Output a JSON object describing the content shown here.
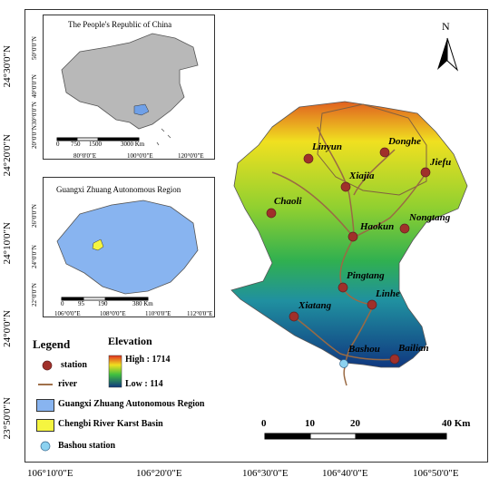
{
  "latitudes": [
    "24°30'0\"N",
    "24°20'0\"N",
    "24°10'0\"N",
    "24°0'0\"N",
    "23°50'0\"N"
  ],
  "longitudes": [
    "106°10'0\"E",
    "106°20'0\"E",
    "106°30'0\"E",
    "106°40'0\"E",
    "106°50'0\"E"
  ],
  "china_inset": {
    "title": "The People's Republic of China",
    "lat_ticks": [
      "50°0'0\"N",
      "40°0'0\"N",
      "30°0'0\"N",
      "20°0'0\"N"
    ],
    "lon_ticks": [
      "80°0'0\"E",
      "100°0'0\"E",
      "120°0'0\"E"
    ],
    "scale": [
      "0",
      "750",
      "1500",
      "3000 Km"
    ]
  },
  "guangxi_inset": {
    "title": "Guangxi Zhuang Autonomous Region",
    "lat_ticks": [
      "26°0'0\"N",
      "24°0'0\"N",
      "22°0'0\"N"
    ],
    "lon_ticks": [
      "106°0'0\"E",
      "108°0'0\"E",
      "110°0'0\"E",
      "112°0'0\"E"
    ],
    "scale": [
      "0",
      "95",
      "190",
      "380 Km"
    ]
  },
  "stations": [
    "Linyun",
    "Donghe",
    "Jiefu",
    "Xiajia",
    "Chaoli",
    "Haokun",
    "Nongtang",
    "Pingtang",
    "Linhe",
    "Xiatang",
    "Bashou",
    "Bailian"
  ],
  "north": "N",
  "scale_bar": [
    "0",
    "10",
    "20",
    "40 Km"
  ],
  "legend": {
    "title": "Legend",
    "station": "station",
    "river": "river",
    "region": "Guangxi Zhuang Autonomous Region",
    "basin": "Chengbi River Karst Basin",
    "bashou": "Bashou station",
    "elev_title": "Elevation",
    "high": "High : 1714",
    "low": "Low : 114"
  },
  "colors": {
    "station": "#a0302a",
    "river": "#a0704a",
    "region": "#88b4f0",
    "basin": "#f5f540",
    "bashou": "#8cd2f0"
  }
}
